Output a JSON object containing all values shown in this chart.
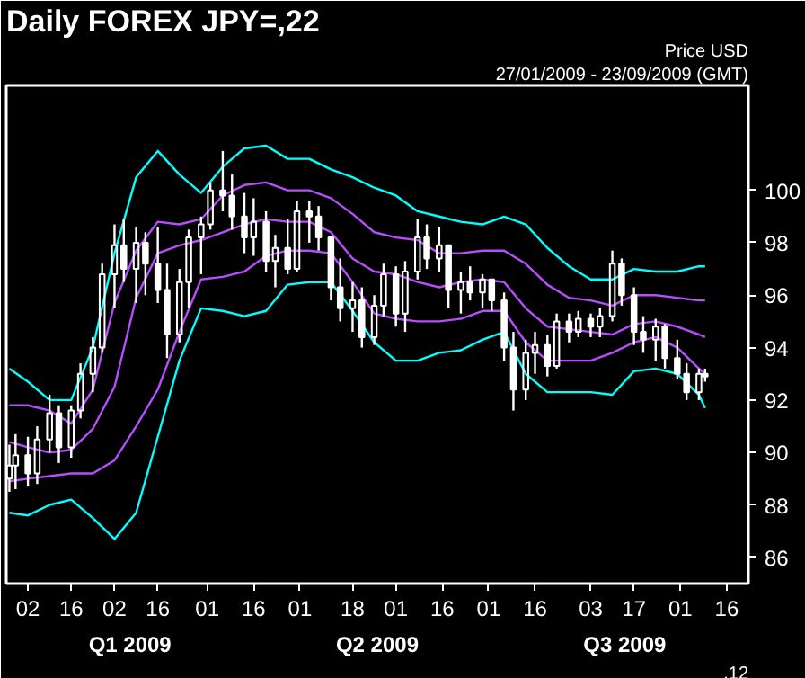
{
  "chart_data": {
    "type": "candlestick",
    "title": "Daily FOREX JPY=,22",
    "subtitle": "27/01/2009 - 23/09/2009 (GMT)",
    "ylabel": "Price USD",
    "annotations": [
      ".12",
      "Q1 2009",
      "Q2 2009",
      "Q3 2009"
    ],
    "grid": false,
    "xlim": [
      "2009-01-26",
      "2009-09-23"
    ],
    "xticks": [
      {
        "value": "2009-02-02",
        "label": "02"
      },
      {
        "value": "2009-02-16",
        "label": "16"
      },
      {
        "value": "2009-03-02",
        "label": "02"
      },
      {
        "value": "2009-03-16",
        "label": "16"
      },
      {
        "value": "2009-04-01",
        "label": "01"
      },
      {
        "value": "2009-04-16",
        "label": "16"
      },
      {
        "value": "2009-05-01",
        "label": "01"
      },
      {
        "value": "2009-05-18",
        "label": "18"
      },
      {
        "value": "2009-06-01",
        "label": "01"
      },
      {
        "value": "2009-06-16",
        "label": "16"
      },
      {
        "value": "2009-07-01",
        "label": "01"
      },
      {
        "value": "2009-07-16",
        "label": "16"
      },
      {
        "value": "2009-08-03",
        "label": "03"
      },
      {
        "value": "2009-08-17",
        "label": "17"
      },
      {
        "value": "2009-09-01",
        "label": "01"
      },
      {
        "value": "2009-09-16",
        "label": "16"
      }
    ],
    "ylim": [
      85,
      104
    ],
    "yticks": [
      86,
      88,
      90,
      92,
      94,
      96,
      98,
      100
    ],
    "x": [
      "2009-01-27",
      "2009-01-29",
      "2009-02-02",
      "2009-02-05",
      "2009-02-09",
      "2009-02-12",
      "2009-02-16",
      "2009-02-19",
      "2009-02-23",
      "2009-02-26",
      "2009-03-02",
      "2009-03-05",
      "2009-03-09",
      "2009-03-12",
      "2009-03-16",
      "2009-03-19",
      "2009-03-23",
      "2009-03-26",
      "2009-03-30",
      "2009-04-02",
      "2009-04-06",
      "2009-04-09",
      "2009-04-13",
      "2009-04-16",
      "2009-04-20",
      "2009-04-23",
      "2009-04-27",
      "2009-04-30",
      "2009-05-04",
      "2009-05-07",
      "2009-05-11",
      "2009-05-14",
      "2009-05-18",
      "2009-05-21",
      "2009-05-25",
      "2009-05-28",
      "2009-06-01",
      "2009-06-04",
      "2009-06-08",
      "2009-06-11",
      "2009-06-15",
      "2009-06-18",
      "2009-06-22",
      "2009-06-25",
      "2009-06-29",
      "2009-07-02",
      "2009-07-06",
      "2009-07-09",
      "2009-07-13",
      "2009-07-16",
      "2009-07-20",
      "2009-07-23",
      "2009-07-27",
      "2009-07-30",
      "2009-08-03",
      "2009-08-06",
      "2009-08-10",
      "2009-08-13",
      "2009-08-17",
      "2009-08-20",
      "2009-08-24",
      "2009-08-27",
      "2009-08-31",
      "2009-09-03",
      "2009-09-07",
      "2009-09-09"
    ],
    "ohlc": [
      [
        89.0,
        90.3,
        88.5,
        89.5
      ],
      [
        89.5,
        90.7,
        88.6,
        89.9
      ],
      [
        89.9,
        90.6,
        88.7,
        89.2
      ],
      [
        89.2,
        91.0,
        88.8,
        90.5
      ],
      [
        90.5,
        92.2,
        90.0,
        91.5
      ],
      [
        91.5,
        91.8,
        89.6,
        90.2
      ],
      [
        90.2,
        91.8,
        89.8,
        91.6
      ],
      [
        91.6,
        93.4,
        91.3,
        93.0
      ],
      [
        93.0,
        94.4,
        92.3,
        94.0
      ],
      [
        94.0,
        97.2,
        93.8,
        96.8
      ],
      [
        96.8,
        98.7,
        95.5,
        97.9
      ],
      [
        97.9,
        98.9,
        96.5,
        97.0
      ],
      [
        97.0,
        98.6,
        95.7,
        98.0
      ],
      [
        98.0,
        98.4,
        96.0,
        97.2
      ],
      [
        97.2,
        98.6,
        95.7,
        96.2
      ],
      [
        96.2,
        97.2,
        93.6,
        94.5
      ],
      [
        94.5,
        97.0,
        94.2,
        96.5
      ],
      [
        96.5,
        98.5,
        95.5,
        98.2
      ],
      [
        98.2,
        99.0,
        96.8,
        98.7
      ],
      [
        98.7,
        100.3,
        98.5,
        100.0
      ],
      [
        100.0,
        101.5,
        99.2,
        99.8
      ],
      [
        99.8,
        100.6,
        98.5,
        99.0
      ],
      [
        99.0,
        99.9,
        97.6,
        98.2
      ],
      [
        98.2,
        99.7,
        97.5,
        98.8
      ],
      [
        98.8,
        99.2,
        96.9,
        97.3
      ],
      [
        97.3,
        98.3,
        96.3,
        97.8
      ],
      [
        97.8,
        98.9,
        96.8,
        97.0
      ],
      [
        97.0,
        99.6,
        96.9,
        99.2
      ],
      [
        99.2,
        99.6,
        98.0,
        99.0
      ],
      [
        99.0,
        99.4,
        97.7,
        98.2
      ],
      [
        98.2,
        98.2,
        95.8,
        96.3
      ],
      [
        96.3,
        97.4,
        95.0,
        95.5
      ],
      [
        95.5,
        96.5,
        94.6,
        95.8
      ],
      [
        95.8,
        96.3,
        94.0,
        94.4
      ],
      [
        94.4,
        96.0,
        94.1,
        95.6
      ],
      [
        95.6,
        97.2,
        95.2,
        96.8
      ],
      [
        96.8,
        97.1,
        94.8,
        95.3
      ],
      [
        95.3,
        97.3,
        94.6,
        96.9
      ],
      [
        96.9,
        98.9,
        96.6,
        98.2
      ],
      [
        98.2,
        98.7,
        97.0,
        97.4
      ],
      [
        97.4,
        98.6,
        96.9,
        97.9
      ],
      [
        97.9,
        97.9,
        95.5,
        96.2
      ],
      [
        96.2,
        96.9,
        95.3,
        96.5
      ],
      [
        96.5,
        97.1,
        95.8,
        96.1
      ],
      [
        96.1,
        96.8,
        95.5,
        96.6
      ],
      [
        96.6,
        96.6,
        95.4,
        95.8
      ],
      [
        95.8,
        96.1,
        93.5,
        94.0
      ],
      [
        94.0,
        94.6,
        91.6,
        92.4
      ],
      [
        92.4,
        94.3,
        92.0,
        93.8
      ],
      [
        93.8,
        94.6,
        93.0,
        94.1
      ],
      [
        94.1,
        94.5,
        92.9,
        93.3
      ],
      [
        93.3,
        95.3,
        93.2,
        95.0
      ],
      [
        95.0,
        95.3,
        94.2,
        94.6
      ],
      [
        94.6,
        95.4,
        94.4,
        95.1
      ],
      [
        95.1,
        95.3,
        94.4,
        94.8
      ],
      [
        94.8,
        95.5,
        94.4,
        95.2
      ],
      [
        95.2,
        97.7,
        95.0,
        97.2
      ],
      [
        97.2,
        97.4,
        95.6,
        96.0
      ],
      [
        96.0,
        96.3,
        94.1,
        94.6
      ],
      [
        94.6,
        95.2,
        93.8,
        94.3
      ],
      [
        94.3,
        95.1,
        93.5,
        94.8
      ],
      [
        94.8,
        94.9,
        93.2,
        93.6
      ],
      [
        93.6,
        94.3,
        92.8,
        93.0
      ],
      [
        93.0,
        93.4,
        92.0,
        92.3
      ],
      [
        92.3,
        93.2,
        92.0,
        93.0
      ],
      [
        93.0,
        93.2,
        92.7,
        92.9
      ]
    ],
    "series": [
      {
        "type": "line",
        "color": "#00ffff",
        "x": [
          "2009-01-27",
          "2009-02-02",
          "2009-02-09",
          "2009-02-16",
          "2009-02-23",
          "2009-03-02",
          "2009-03-09",
          "2009-03-16",
          "2009-03-23",
          "2009-03-30",
          "2009-04-06",
          "2009-04-13",
          "2009-04-20",
          "2009-04-27",
          "2009-05-04",
          "2009-05-11",
          "2009-05-18",
          "2009-05-25",
          "2009-06-01",
          "2009-06-08",
          "2009-06-15",
          "2009-06-22",
          "2009-06-29",
          "2009-07-06",
          "2009-07-13",
          "2009-07-20",
          "2009-07-27",
          "2009-08-03",
          "2009-08-10",
          "2009-08-17",
          "2009-08-24",
          "2009-08-31",
          "2009-09-07",
          "2009-09-09"
        ],
        "values": [
          93.2,
          92.7,
          92.0,
          92.0,
          94.0,
          97.6,
          100.5,
          101.5,
          100.6,
          99.9,
          100.9,
          101.6,
          101.7,
          101.2,
          101.2,
          100.8,
          100.5,
          100.1,
          99.8,
          99.2,
          99.0,
          98.8,
          98.7,
          99.0,
          98.7,
          97.8,
          97.1,
          96.6,
          96.6,
          97.0,
          96.9,
          96.9,
          97.1,
          97.1
        ]
      },
      {
        "type": "line",
        "color": "#b84dff",
        "x": [
          "2009-01-27",
          "2009-02-02",
          "2009-02-09",
          "2009-02-16",
          "2009-02-23",
          "2009-03-02",
          "2009-03-09",
          "2009-03-16",
          "2009-03-23",
          "2009-03-30",
          "2009-04-06",
          "2009-04-13",
          "2009-04-20",
          "2009-04-27",
          "2009-05-04",
          "2009-05-11",
          "2009-05-18",
          "2009-05-25",
          "2009-06-01",
          "2009-06-08",
          "2009-06-15",
          "2009-06-22",
          "2009-06-29",
          "2009-07-06",
          "2009-07-13",
          "2009-07-20",
          "2009-07-27",
          "2009-08-03",
          "2009-08-10",
          "2009-08-17",
          "2009-08-24",
          "2009-08-31",
          "2009-09-07",
          "2009-09-09"
        ],
        "values": [
          91.8,
          91.8,
          91.6,
          91.1,
          92.4,
          95.7,
          97.7,
          98.8,
          98.7,
          98.9,
          99.8,
          100.2,
          100.3,
          100.0,
          100.0,
          99.7,
          99.1,
          98.4,
          98.2,
          98.1,
          97.6,
          97.6,
          97.7,
          97.7,
          97.2,
          96.4,
          95.9,
          95.8,
          95.6,
          96.0,
          96.0,
          95.9,
          95.8,
          95.8
        ]
      },
      {
        "type": "line",
        "color": "#b84dff",
        "x": [
          "2009-01-27",
          "2009-02-02",
          "2009-02-09",
          "2009-02-16",
          "2009-02-23",
          "2009-03-02",
          "2009-03-09",
          "2009-03-16",
          "2009-03-23",
          "2009-03-30",
          "2009-04-06",
          "2009-04-13",
          "2009-04-20",
          "2009-04-27",
          "2009-05-04",
          "2009-05-11",
          "2009-05-18",
          "2009-05-25",
          "2009-06-01",
          "2009-06-08",
          "2009-06-15",
          "2009-06-22",
          "2009-06-29",
          "2009-07-06",
          "2009-07-13",
          "2009-07-20",
          "2009-07-27",
          "2009-08-03",
          "2009-08-10",
          "2009-08-17",
          "2009-08-24",
          "2009-08-31",
          "2009-09-07",
          "2009-09-09"
        ],
        "values": [
          90.4,
          90.2,
          90.0,
          90.1,
          90.9,
          92.5,
          95.9,
          97.6,
          97.9,
          98.1,
          98.4,
          98.7,
          98.9,
          98.8,
          98.8,
          98.4,
          97.4,
          96.9,
          96.8,
          96.5,
          96.3,
          96.5,
          96.6,
          96.5,
          95.5,
          94.8,
          94.7,
          94.6,
          94.5,
          94.9,
          95.0,
          94.8,
          94.5,
          94.4
        ]
      },
      {
        "type": "line",
        "color": "#b84dff",
        "x": [
          "2009-01-27",
          "2009-02-02",
          "2009-02-09",
          "2009-02-16",
          "2009-02-23",
          "2009-03-02",
          "2009-03-09",
          "2009-03-16",
          "2009-03-23",
          "2009-03-30",
          "2009-04-06",
          "2009-04-13",
          "2009-04-20",
          "2009-04-27",
          "2009-05-04",
          "2009-05-11",
          "2009-05-18",
          "2009-05-25",
          "2009-06-01",
          "2009-06-08",
          "2009-06-15",
          "2009-06-22",
          "2009-06-29",
          "2009-07-06",
          "2009-07-13",
          "2009-07-20",
          "2009-07-27",
          "2009-08-03",
          "2009-08-10",
          "2009-08-17",
          "2009-08-24",
          "2009-08-31",
          "2009-09-07",
          "2009-09-09"
        ],
        "values": [
          88.9,
          89.0,
          89.1,
          89.2,
          89.2,
          89.7,
          91.0,
          92.4,
          94.6,
          96.6,
          96.7,
          96.9,
          97.5,
          97.7,
          97.7,
          97.6,
          96.5,
          95.3,
          95.1,
          95.0,
          95.0,
          95.1,
          95.4,
          95.4,
          94.2,
          93.5,
          93.5,
          93.5,
          93.8,
          94.2,
          94.4,
          94.0,
          93.2,
          93.0
        ]
      },
      {
        "type": "line",
        "color": "#00ffff",
        "x": [
          "2009-01-27",
          "2009-02-02",
          "2009-02-09",
          "2009-02-16",
          "2009-02-23",
          "2009-03-02",
          "2009-03-09",
          "2009-03-16",
          "2009-03-23",
          "2009-03-30",
          "2009-04-06",
          "2009-04-13",
          "2009-04-20",
          "2009-04-27",
          "2009-05-04",
          "2009-05-11",
          "2009-05-18",
          "2009-05-25",
          "2009-06-01",
          "2009-06-08",
          "2009-06-15",
          "2009-06-22",
          "2009-06-29",
          "2009-07-06",
          "2009-07-13",
          "2009-07-20",
          "2009-07-27",
          "2009-08-03",
          "2009-08-10",
          "2009-08-17",
          "2009-08-24",
          "2009-08-31",
          "2009-09-07",
          "2009-09-09"
        ],
        "values": [
          87.7,
          87.6,
          88.0,
          88.2,
          87.5,
          86.7,
          87.7,
          90.6,
          93.5,
          95.5,
          95.4,
          95.2,
          95.4,
          96.4,
          96.5,
          96.5,
          95.4,
          94.2,
          93.5,
          93.5,
          93.8,
          93.9,
          94.3,
          94.6,
          93.0,
          92.3,
          92.3,
          92.3,
          92.2,
          93.1,
          93.2,
          93.0,
          92.2,
          91.7
        ]
      }
    ]
  }
}
